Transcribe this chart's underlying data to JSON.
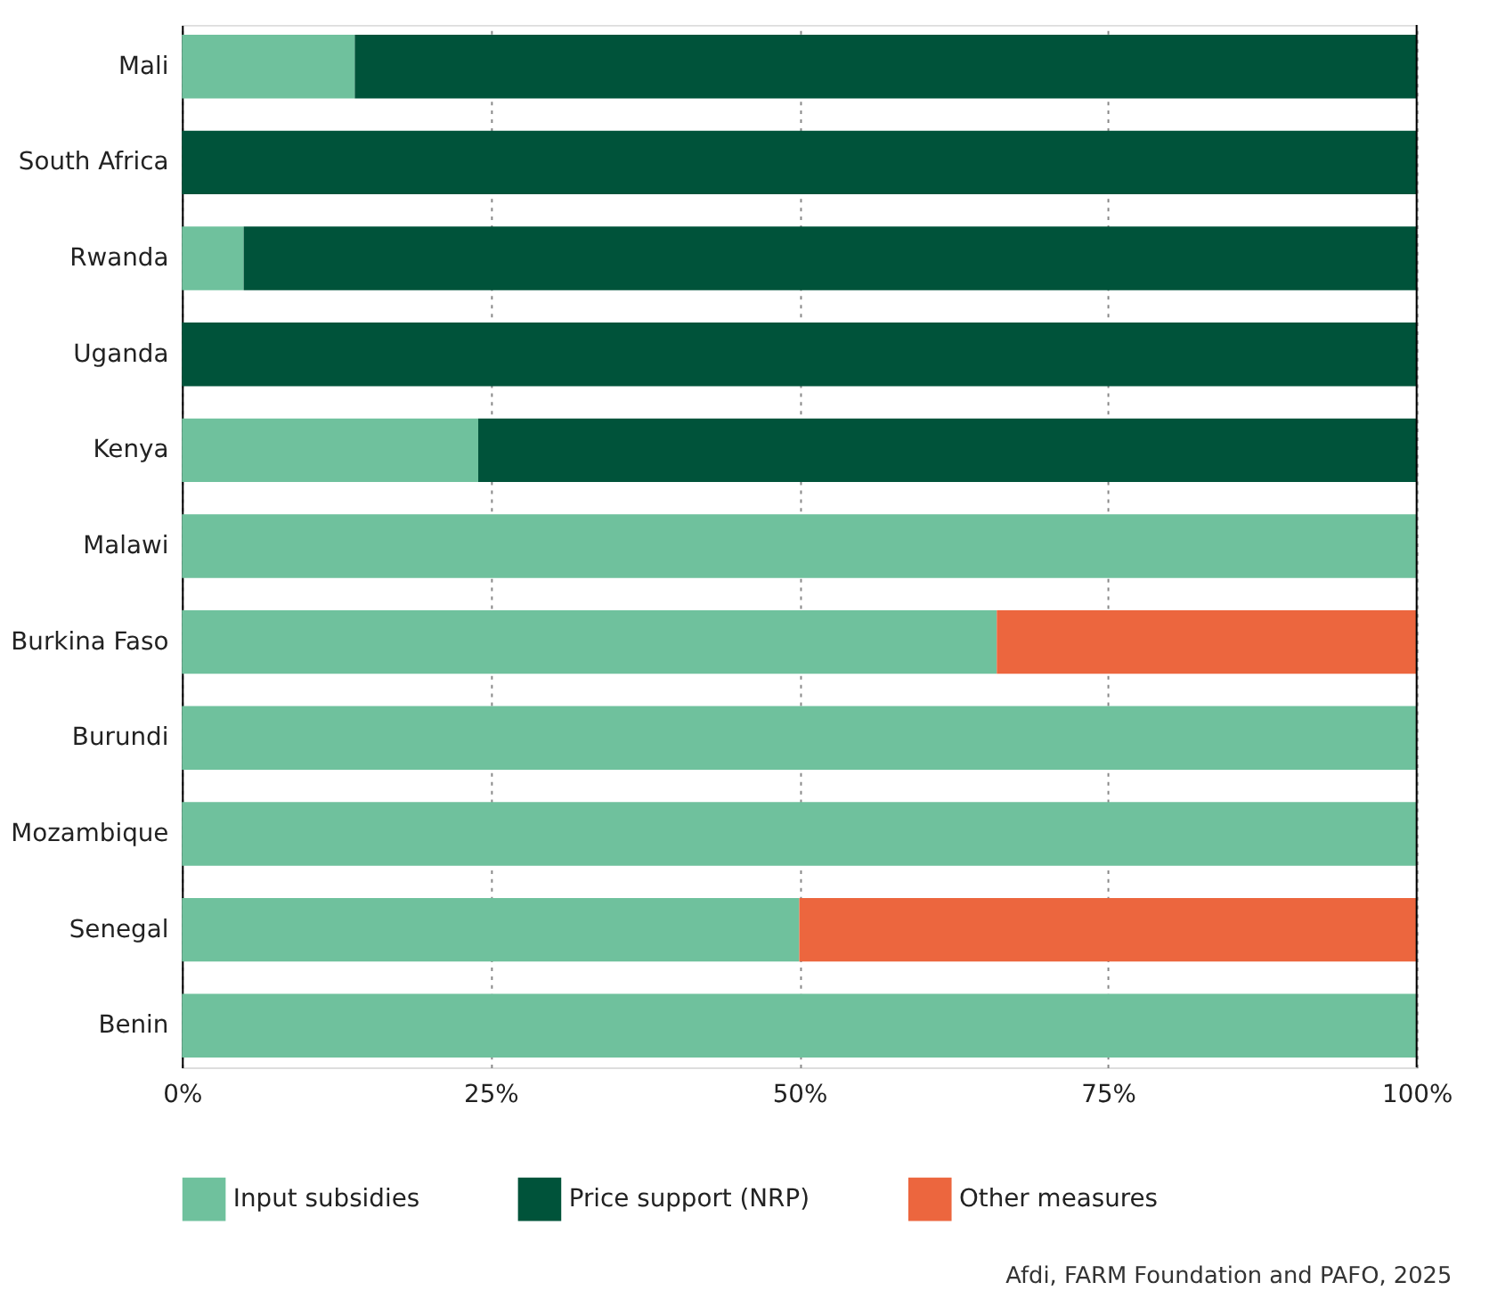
{
  "chart_data": {
    "type": "bar",
    "orientation": "horizontal",
    "stacked": true,
    "categories": [
      "Mali",
      "South Africa",
      "Rwanda",
      "Uganda",
      "Kenya",
      "Malawi",
      "Burkina Faso",
      "Burundi",
      "Mozambique",
      "Senegal",
      "Benin"
    ],
    "series": [
      {
        "name": "Input subsidies",
        "color": "#6fc19d",
        "values": [
          14,
          0,
          5,
          0,
          24,
          100,
          66,
          100,
          100,
          50,
          100
        ]
      },
      {
        "name": "Price support (NRP)",
        "color": "#00533a",
        "values": [
          86,
          100,
          95,
          100,
          76,
          0,
          0,
          0,
          0,
          0,
          0
        ]
      },
      {
        "name": "Other measures",
        "color": "#ec663e",
        "values": [
          0,
          0,
          0,
          0,
          0,
          0,
          34,
          0,
          0,
          50,
          0
        ]
      }
    ],
    "xlim": [
      0,
      100
    ],
    "xticks": [
      {
        "value": 0,
        "label": "0%"
      },
      {
        "value": 25,
        "label": "25%"
      },
      {
        "value": 50,
        "label": "50%"
      },
      {
        "value": 75,
        "label": "75%"
      },
      {
        "value": 100,
        "label": "100%"
      }
    ],
    "grid": "x",
    "legend": "bottom",
    "annotations": [
      "Afdi, FARM Foundation and PAFO, 2025"
    ]
  }
}
